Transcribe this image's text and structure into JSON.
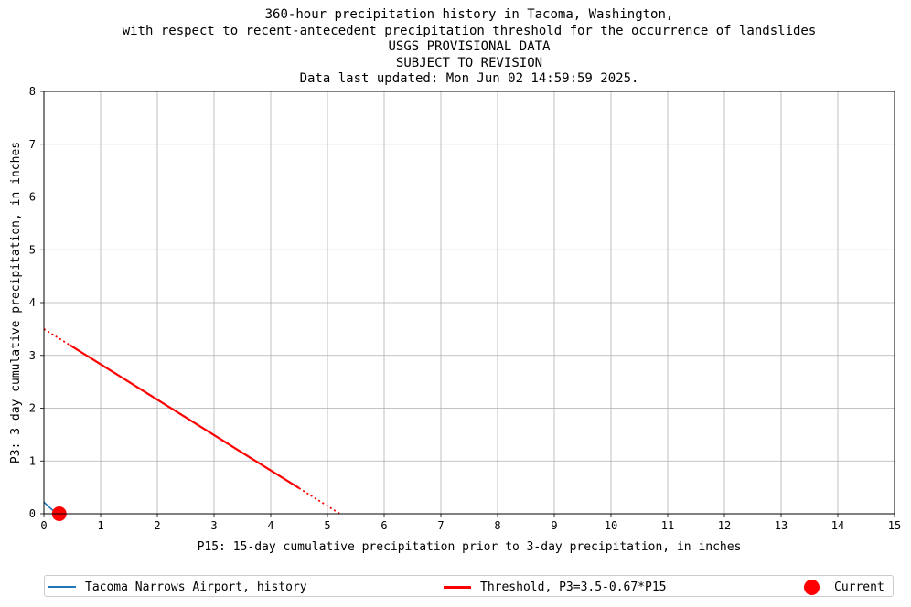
{
  "chart_data": {
    "type": "line",
    "title_lines": [
      "360-hour precipitation history in Tacoma, Washington,",
      "with respect to recent-antecedent precipitation threshold for the occurrence of landslides",
      "USGS PROVISIONAL DATA",
      "SUBJECT TO REVISION",
      "Data last updated: Mon Jun 02 14:59:59 2025."
    ],
    "xlabel": "P15: 15-day cumulative precipitation prior to 3-day precipitation, in inches",
    "ylabel": "P3: 3-day cumulative precipitation, in inches",
    "xlim": [
      0,
      15
    ],
    "ylim": [
      0,
      8
    ],
    "xticks": [
      0,
      1,
      2,
      3,
      4,
      5,
      6,
      7,
      8,
      9,
      10,
      11,
      12,
      13,
      14,
      15
    ],
    "yticks": [
      0,
      1,
      2,
      3,
      4,
      5,
      6,
      7,
      8
    ],
    "grid": true,
    "legend_position": "bottom",
    "series": [
      {
        "name": "Tacoma Narrows Airport, history",
        "color": "#1f77b4",
        "style": "solid",
        "x": [
          0.0,
          0.12,
          0.2,
          0.26
        ],
        "y": [
          0.22,
          0.1,
          0.03,
          0.0
        ]
      },
      {
        "name": "Threshold, P3=3.5-0.67*P15",
        "color": "#ff0000",
        "style": "solid",
        "x": [
          0.45,
          4.5
        ],
        "y": [
          3.2,
          0.485
        ]
      },
      {
        "name": "",
        "color": "#ff0000",
        "style": "dotted",
        "x": [
          0.0,
          0.45
        ],
        "y": [
          3.5,
          3.2
        ]
      },
      {
        "name": "",
        "color": "#ff0000",
        "style": "dotted",
        "x": [
          4.5,
          5.22
        ],
        "y": [
          0.485,
          0.0
        ]
      }
    ],
    "current_point": {
      "name": "Current",
      "color": "#ff0000",
      "x": 0.27,
      "y": 0.0
    }
  }
}
